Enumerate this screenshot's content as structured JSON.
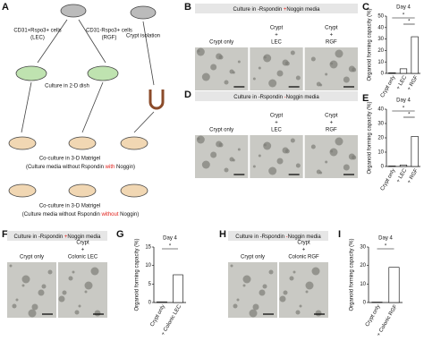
{
  "panel_labels": [
    "A",
    "B",
    "C",
    "D",
    "E",
    "F",
    "G",
    "H",
    "I"
  ],
  "panel_a": {
    "lec_cells": "CD31+Rspo3+ cells",
    "lec_abbr": "(LEC)",
    "rgf_cells": "CD31-Rspo3+ cells",
    "rgf_abbr": "(RGF)",
    "crypt_isolation": "Crypt isolation",
    "culture_2d": "Culture in 2-D dish",
    "coculture_1": "Co-culture in 3-D Matrigel",
    "media_1": [
      "(Culture media without Rspondin ",
      "with",
      " Noggin)"
    ],
    "coculture_2": "Co-culture in 3-D Matrigel",
    "media_2": [
      "(Culture media without Rspondin ",
      "without",
      " Noggin)"
    ]
  },
  "panel_b": {
    "title": [
      "Culture in -Rspondin ",
      "+",
      "Noggin media"
    ],
    "images": [
      [
        "Crypt only"
      ],
      [
        "Crypt",
        "+",
        "LEC"
      ],
      [
        "Crypt",
        "+",
        "RGF"
      ]
    ]
  },
  "panel_d": {
    "title": [
      "Culture in -Rspondin ",
      "-",
      "Noggin media"
    ],
    "images": [
      [
        "Crypt only"
      ],
      [
        "Crypt",
        "+",
        "LEC"
      ],
      [
        "Crypt",
        "+",
        "RGF"
      ]
    ]
  },
  "panel_f": {
    "title": [
      "Culture in -Rspondin ",
      "+",
      "Noggin media"
    ],
    "images": [
      [
        "Crypt only"
      ],
      [
        "Crypt",
        "+",
        "Colonic LEC"
      ]
    ]
  },
  "panel_h": {
    "title": [
      "Culture in -Rspondin ",
      "-",
      "Noggin media"
    ],
    "images": [
      [
        "Crypt only"
      ],
      [
        "Crypt",
        "+",
        "Colonic RGF"
      ]
    ]
  },
  "chart_data": [
    {
      "type": "bar",
      "title": "Day 4",
      "ylabel": "Organoid forming capacity (%)",
      "categories": [
        "Crypt only",
        "+ LEC",
        "+ RGF"
      ],
      "values": [
        0.5,
        4,
        32
      ],
      "color": "#ffffff",
      "ylim": [
        0,
        50
      ],
      "yticks": [
        0,
        10,
        20,
        30,
        40,
        50
      ],
      "annotations": [
        "*",
        "*"
      ]
    },
    {
      "type": "bar",
      "title": "Day 4",
      "ylabel": "Organoid forming capacity (%)",
      "categories": [
        "Crypt only",
        "+ LEC",
        "+ RGF"
      ],
      "values": [
        0.3,
        1,
        21
      ],
      "color": "#ffffff",
      "ylim": [
        0,
        40
      ],
      "yticks": [
        0,
        10,
        20,
        30,
        40
      ],
      "annotations": [
        "*",
        "*"
      ]
    },
    {
      "type": "bar",
      "title": "Day 4",
      "ylabel": "Organoid forming capacity (%)",
      "categories": [
        "Crypt only",
        "+ Colonic LEC"
      ],
      "values": [
        0.2,
        7.5
      ],
      "color": "#ffffff",
      "ylim": [
        0,
        15
      ],
      "yticks": [
        0,
        5,
        10,
        15
      ],
      "annotations": [
        "*"
      ]
    },
    {
      "type": "bar",
      "title": "Day 4",
      "ylabel": "Organoid forming capacity (%)",
      "categories": [
        "Crypt only",
        "+ Colonic RGF"
      ],
      "values": [
        0.2,
        19
      ],
      "color": "#ffffff",
      "ylim": [
        0,
        30
      ],
      "yticks": [
        0,
        10,
        20,
        30
      ],
      "annotations": [
        "*"
      ]
    }
  ]
}
